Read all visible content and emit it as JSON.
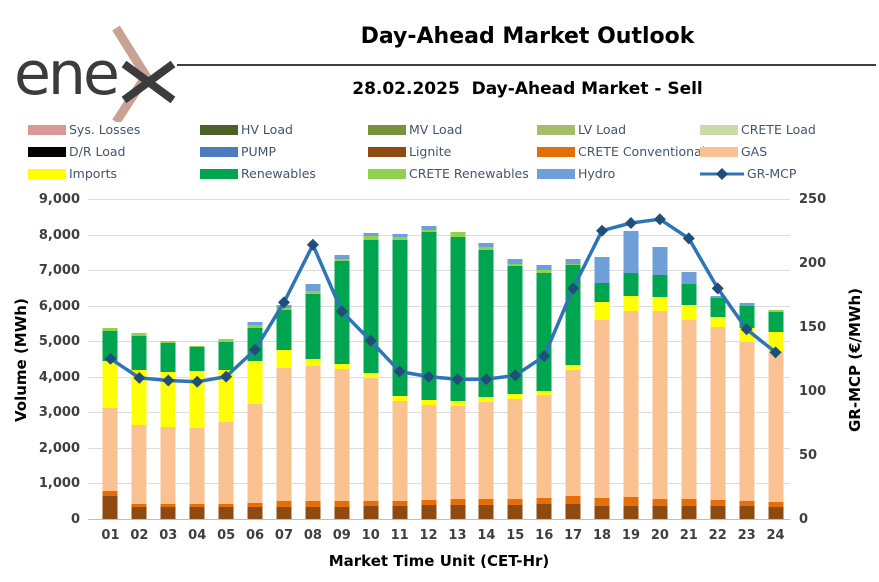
{
  "header": {
    "logo_text": "ene",
    "logo_x": "x",
    "title": "Day-Ahead Market Outlook",
    "subtitle": "28.02.2025  Day-Ahead Market - Sell"
  },
  "colors": {
    "accent_logo_chevron": "#C9A294",
    "logo_text": "#3B3B3D",
    "legend_text": "#44546A",
    "gridline": "#DCDCDC",
    "mcp_line": "#2E75B6",
    "mcp_marker": "#1F4E79"
  },
  "chart_data": {
    "type": "bar",
    "stacked": true,
    "grid": true,
    "legend_position": "top",
    "xlabel": "Market Time Unit (CET-Hr)",
    "ylabel_left": "Volume (MWh)",
    "ylabel_right": "GR-MCP (€/MWh)",
    "ylim_left": [
      0,
      9000
    ],
    "ylim_right": [
      0,
      250
    ],
    "yticks_left": [
      "0",
      "1,000",
      "2,000",
      "3,000",
      "4,000",
      "5,000",
      "6,000",
      "7,000",
      "8,000",
      "9,000"
    ],
    "yticks_right": [
      "0",
      "50",
      "100",
      "150",
      "200",
      "250"
    ],
    "categories": [
      "01",
      "02",
      "03",
      "04",
      "05",
      "06",
      "07",
      "08",
      "09",
      "10",
      "11",
      "12",
      "13",
      "14",
      "15",
      "16",
      "17",
      "18",
      "19",
      "20",
      "21",
      "22",
      "23",
      "24"
    ],
    "series": [
      {
        "id": "sys-losses",
        "name": "Sys. Losses",
        "color": "#D99795",
        "values": [
          0,
          0,
          0,
          0,
          0,
          0,
          0,
          0,
          0,
          0,
          0,
          0,
          0,
          0,
          0,
          0,
          0,
          0,
          0,
          0,
          0,
          0,
          0,
          0
        ]
      },
      {
        "id": "hv-load",
        "name": "HV Load",
        "color": "#4E6128",
        "values": [
          0,
          0,
          0,
          0,
          0,
          0,
          0,
          0,
          0,
          0,
          0,
          0,
          0,
          0,
          0,
          0,
          0,
          0,
          0,
          0,
          0,
          0,
          0,
          0
        ]
      },
      {
        "id": "mv-load",
        "name": "MV Load",
        "color": "#77933C",
        "values": [
          0,
          0,
          0,
          0,
          0,
          0,
          0,
          0,
          0,
          0,
          0,
          0,
          0,
          0,
          0,
          0,
          0,
          0,
          0,
          0,
          0,
          0,
          0,
          0
        ]
      },
      {
        "id": "lv-load",
        "name": "LV Load",
        "color": "#A3BD6B",
        "values": [
          0,
          0,
          0,
          0,
          0,
          0,
          0,
          0,
          0,
          0,
          0,
          0,
          0,
          0,
          0,
          0,
          0,
          0,
          0,
          0,
          0,
          0,
          0,
          0
        ]
      },
      {
        "id": "crete-load",
        "name": "CRETE Load",
        "color": "#C9DCA8",
        "values": [
          0,
          0,
          0,
          0,
          0,
          0,
          0,
          0,
          0,
          0,
          0,
          0,
          0,
          0,
          0,
          0,
          0,
          0,
          0,
          0,
          0,
          0,
          0,
          0
        ]
      },
      {
        "id": "dr-load",
        "name": "D/R Load",
        "color": "#000000",
        "values": [
          0,
          0,
          0,
          0,
          0,
          0,
          0,
          0,
          0,
          0,
          0,
          0,
          0,
          0,
          0,
          0,
          0,
          0,
          0,
          0,
          0,
          0,
          0,
          0
        ]
      },
      {
        "id": "pump",
        "name": "PUMP",
        "color": "#4C7CBE",
        "values": [
          0,
          0,
          0,
          0,
          0,
          0,
          0,
          0,
          0,
          0,
          0,
          0,
          0,
          0,
          0,
          0,
          0,
          0,
          0,
          0,
          0,
          0,
          0,
          0
        ]
      },
      {
        "id": "lignite",
        "name": "Lignite",
        "color": "#8E4A10",
        "values": [
          640,
          340,
          340,
          340,
          340,
          350,
          345,
          350,
          350,
          370,
          375,
          400,
          400,
          400,
          400,
          425,
          425,
          360,
          360,
          360,
          365,
          380,
          360,
          350
        ]
      },
      {
        "id": "crete-conventional",
        "name": "CRETE Conventional",
        "color": "#E36E0A",
        "values": [
          150,
          80,
          80,
          80,
          90,
          100,
          160,
          160,
          150,
          140,
          140,
          135,
          170,
          160,
          150,
          160,
          215,
          225,
          255,
          210,
          190,
          155,
          140,
          120
        ]
      },
      {
        "id": "gas",
        "name": "GAS",
        "color": "#FAC191",
        "values": [
          2325,
          2220,
          2175,
          2150,
          2310,
          2790,
          3740,
          3790,
          3710,
          3450,
          2815,
          2675,
          2610,
          2745,
          2830,
          2890,
          3550,
          5005,
          5235,
          5270,
          5055,
          4875,
          4465,
          4255
        ]
      },
      {
        "id": "imports",
        "name": "Imports",
        "color": "#FFFF00",
        "values": [
          1330,
          1550,
          1530,
          1595,
          1450,
          1205,
          495,
          210,
          160,
          150,
          140,
          150,
          150,
          140,
          135,
          135,
          150,
          510,
          410,
          410,
          400,
          260,
          405,
          545
        ]
      },
      {
        "id": "renewables",
        "name": "Renewables",
        "color": "#00A550",
        "values": [
          845,
          960,
          820,
          660,
          800,
          940,
          1130,
          1820,
          2890,
          3750,
          4370,
          4710,
          4610,
          4115,
          3595,
          3320,
          2795,
          530,
          670,
          620,
          610,
          550,
          635,
          540
        ]
      },
      {
        "id": "crete-renewables",
        "name": "CRETE Renewables",
        "color": "#92D050",
        "values": [
          95,
          75,
          65,
          55,
          75,
          75,
          60,
          70,
          60,
          90,
          90,
          70,
          140,
          80,
          55,
          70,
          45,
          0,
          0,
          0,
          0,
          0,
          0,
          75
        ]
      },
      {
        "id": "hydro",
        "name": "Hydro",
        "color": "#6E9FD8",
        "values": [
          0,
          0,
          0,
          0,
          0,
          95,
          100,
          210,
          110,
          100,
          100,
          90,
          0,
          130,
          135,
          140,
          120,
          740,
          1170,
          770,
          340,
          60,
          85,
          0
        ]
      }
    ],
    "line_series": {
      "id": "gr-mcp",
      "name": "GR-MCP",
      "color": "#2E75B6",
      "marker_color": "#1F4E79",
      "values": [
        126,
        111,
        109,
        108,
        112,
        133,
        170,
        215,
        163,
        140,
        116,
        112,
        110,
        110,
        113,
        128,
        181,
        226,
        232,
        235,
        220,
        181,
        149,
        131
      ]
    }
  }
}
